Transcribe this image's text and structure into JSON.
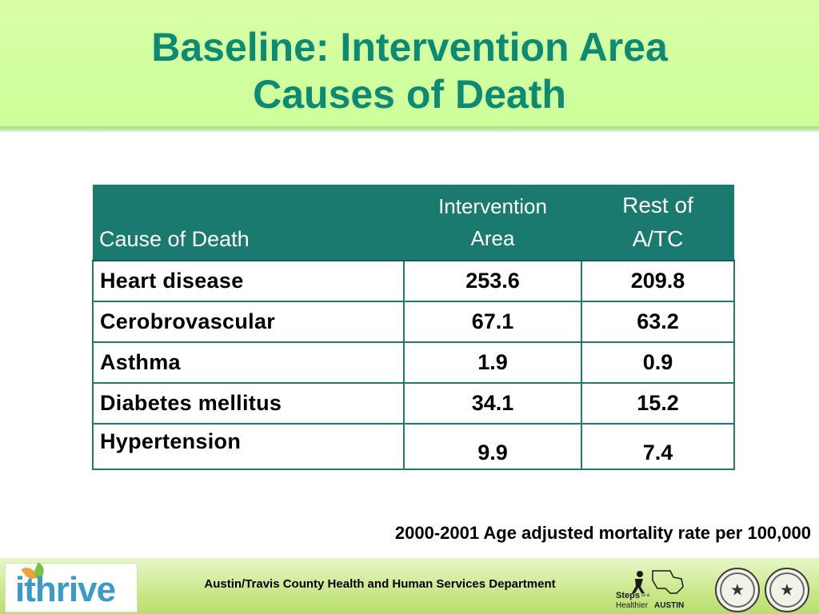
{
  "slide": {
    "title_line1": "Baseline: Intervention Area",
    "title_line2": "Causes of Death"
  },
  "table": {
    "headers": {
      "cause": "Cause of Death",
      "intervention_line1": "Intervention",
      "intervention_line2": "Area",
      "rest_line1": "Rest of",
      "rest_line2": "A/TC"
    },
    "rows": [
      {
        "cause": "Heart disease",
        "intervention": "253.6",
        "rest": "209.8"
      },
      {
        "cause": "Cerobrovascular",
        "intervention": "67.1",
        "rest": "63.2"
      },
      {
        "cause": "Asthma",
        "intervention": "1.9",
        "rest": "0.9"
      },
      {
        "cause": "Diabetes mellitus",
        "intervention": "34.1",
        "rest": "15.2"
      },
      {
        "cause": "Hypertension",
        "intervention": "9.9",
        "rest": "7.4"
      }
    ]
  },
  "note": "2000-2001 Age adjusted mortality rate per 100,000",
  "footer": {
    "logo_text": "ithrive",
    "department": "Austin/Travis County Health and Human Services Department",
    "steps_line1": "Steps",
    "steps_small": "to a",
    "steps_line2": "Healthier",
    "steps_city": "AUSTIN"
  },
  "colors": {
    "title": "#0d8a73",
    "header_bg": "#ccff99",
    "table_header_bg": "#1a7a70",
    "table_border": "#1f7b72",
    "footer_bg": "#cde98f",
    "logo_blue": "#3a9bc8"
  },
  "icons": {
    "logo": "ithrive-leaf-logo",
    "steps": "steps-healthier-austin-logo",
    "seal_city": "city-of-austin-seal-icon",
    "seal_county": "travis-county-seal-icon"
  }
}
